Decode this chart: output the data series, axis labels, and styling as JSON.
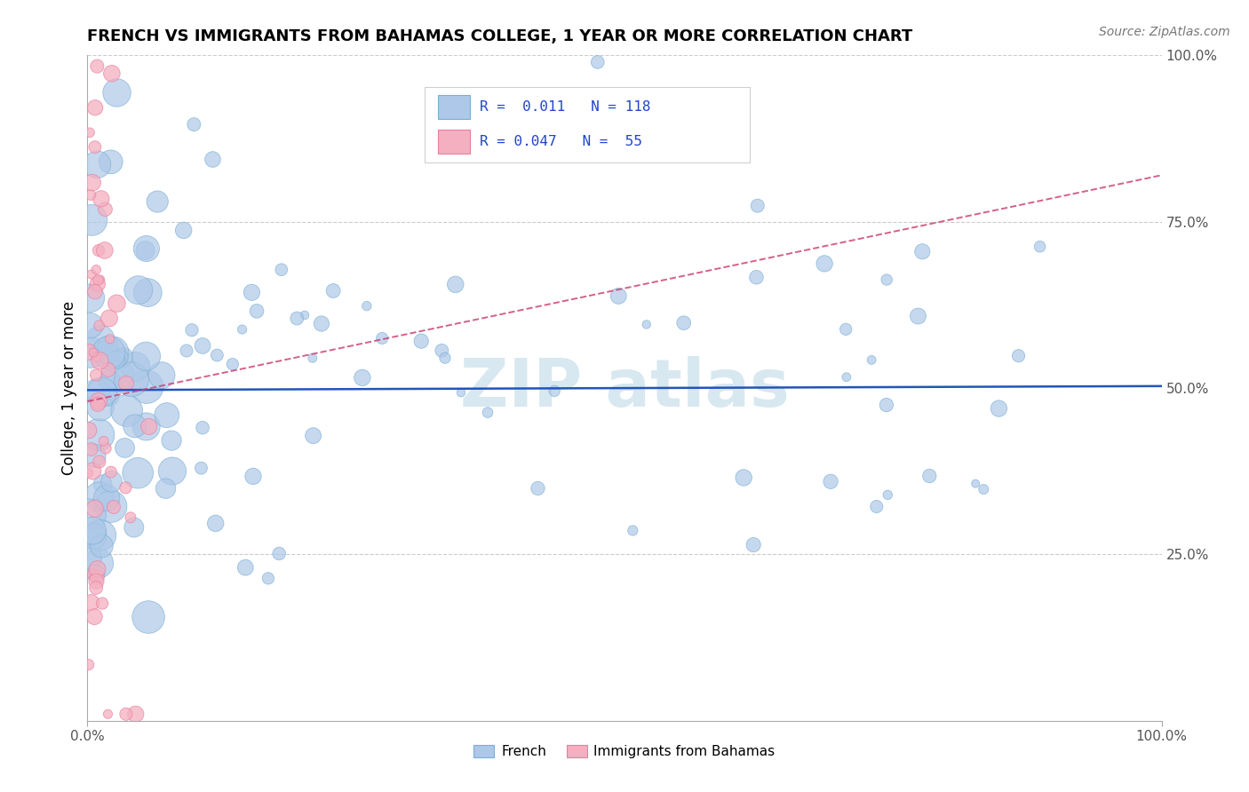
{
  "title": "FRENCH VS IMMIGRANTS FROM BAHAMAS COLLEGE, 1 YEAR OR MORE CORRELATION CHART",
  "source": "Source: ZipAtlas.com",
  "ylabel": "College, 1 year or more",
  "xlim": [
    0,
    1
  ],
  "ylim": [
    0,
    1
  ],
  "blue_color": "#adc8e8",
  "blue_edge": "#7aafd4",
  "pink_color": "#f4afc0",
  "pink_edge": "#e87fa0",
  "blue_line_color": "#2255bb",
  "pink_line_color": "#cc4477",
  "grid_color": "#cccccc",
  "R_blue": 0.011,
  "N_blue": 118,
  "R_pink": 0.047,
  "N_pink": 55,
  "legend_text_color": "#2244cc",
  "watermark_color": "#d8e8f0",
  "title_fontsize": 13,
  "axis_tick_color": "#555555",
  "axis_tick_fontsize": 11
}
